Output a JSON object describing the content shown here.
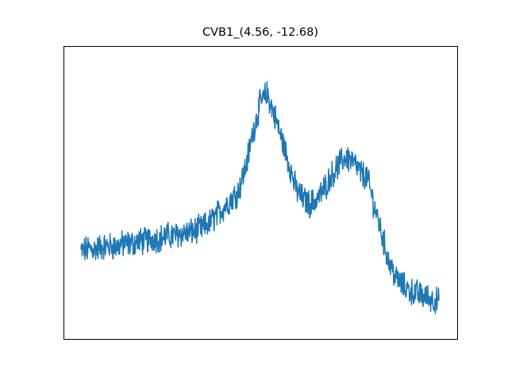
{
  "chart_data": {
    "type": "line",
    "title": "CVB1_(4.56, -12.68)",
    "xlabel": "",
    "ylabel": "",
    "grid": false,
    "axes_ticks_visible": false,
    "series_color": "#1f77b4",
    "x_range": [
      0,
      1
    ],
    "y_range": [
      0,
      1
    ],
    "series": [
      {
        "x": [
          0.0,
          0.02,
          0.04,
          0.06,
          0.08,
          0.1,
          0.12,
          0.14,
          0.16,
          0.18,
          0.2,
          0.22,
          0.24,
          0.26,
          0.28,
          0.3,
          0.32,
          0.34,
          0.36,
          0.38,
          0.4,
          0.42,
          0.44,
          0.46,
          0.48,
          0.5,
          0.52,
          0.54,
          0.56,
          0.58,
          0.6,
          0.62,
          0.64,
          0.66,
          0.68,
          0.7,
          0.72,
          0.74,
          0.76,
          0.78,
          0.8,
          0.82,
          0.84,
          0.86,
          0.88,
          0.9,
          0.92,
          0.94,
          0.96,
          0.98,
          1.0
        ],
        "y": [
          0.28,
          0.29,
          0.29,
          0.3,
          0.3,
          0.3,
          0.31,
          0.31,
          0.32,
          0.32,
          0.33,
          0.33,
          0.34,
          0.34,
          0.35,
          0.35,
          0.36,
          0.37,
          0.39,
          0.42,
          0.45,
          0.48,
          0.51,
          0.6,
          0.73,
          0.84,
          0.88,
          0.8,
          0.71,
          0.62,
          0.52,
          0.48,
          0.46,
          0.48,
          0.52,
          0.57,
          0.61,
          0.64,
          0.62,
          0.58,
          0.56,
          0.45,
          0.35,
          0.24,
          0.18,
          0.15,
          0.13,
          0.12,
          0.11,
          0.1,
          0.09
        ]
      }
    ]
  }
}
